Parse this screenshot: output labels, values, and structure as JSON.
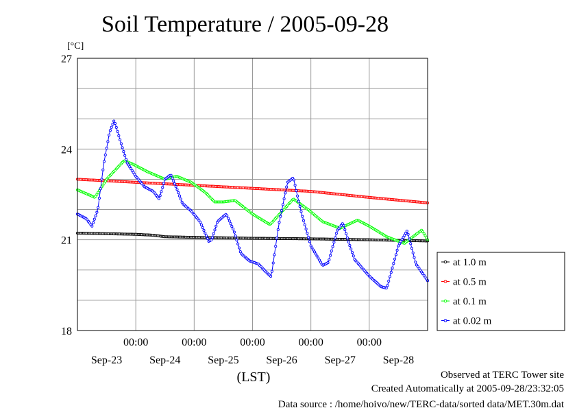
{
  "chart_data": {
    "type": "line",
    "title": "Soil Temperature / 2005-09-28",
    "ylabel": "[°C]",
    "xlabel": "(LST)",
    "ylim": [
      18,
      27
    ],
    "yticks": [
      "18",
      "21",
      "24",
      "27"
    ],
    "xlim_days": [
      22.0,
      28.0
    ],
    "x_time_labels": [
      "00:00",
      "00:00",
      "00:00",
      "00:00",
      "00:00"
    ],
    "x_date_labels": [
      "Sep-23",
      "Sep-24",
      "Sep-25",
      "Sep-26",
      "Sep-27",
      "Sep-28"
    ],
    "grid": true,
    "legend_position": "right",
    "series": [
      {
        "name": "at 1.0 m",
        "color": "#000000",
        "x": [
          22.0,
          22.5,
          23.0,
          23.3,
          23.5,
          24.0,
          25.0,
          26.0,
          27.0,
          28.0
        ],
        "y": [
          21.22,
          21.2,
          21.18,
          21.15,
          21.1,
          21.08,
          21.05,
          21.03,
          21.0,
          20.96
        ]
      },
      {
        "name": "at 0.5 m",
        "color": "#ff0000",
        "x": [
          22.0,
          23.0,
          24.0,
          25.0,
          26.0,
          27.0,
          28.0
        ],
        "y": [
          23.0,
          22.9,
          22.8,
          22.7,
          22.6,
          22.4,
          22.22
        ]
      },
      {
        "name": "at 0.1 m",
        "color": "#00ff00",
        "x": [
          22.0,
          22.3,
          22.5,
          22.8,
          22.95,
          23.2,
          23.5,
          23.7,
          23.95,
          24.2,
          24.35,
          24.5,
          24.7,
          25.0,
          25.3,
          25.7,
          25.95,
          26.2,
          26.5,
          26.8,
          27.0,
          27.3,
          27.6,
          27.9,
          28.0
        ],
        "y": [
          22.65,
          22.4,
          23.0,
          23.62,
          23.5,
          23.25,
          23.0,
          23.1,
          22.9,
          22.55,
          22.25,
          22.25,
          22.3,
          21.85,
          21.5,
          22.35,
          22.0,
          21.6,
          21.38,
          21.65,
          21.45,
          21.1,
          20.88,
          21.32,
          21.0
        ]
      },
      {
        "name": "at 0.02 m",
        "color": "#0000ff",
        "x": [
          22.0,
          22.15,
          22.25,
          22.35,
          22.45,
          22.55,
          22.63,
          22.73,
          22.85,
          23.0,
          23.15,
          23.3,
          23.4,
          23.5,
          23.6,
          23.7,
          23.8,
          23.95,
          24.1,
          24.25,
          24.3,
          24.4,
          24.55,
          24.68,
          24.8,
          24.95,
          25.1,
          25.25,
          25.32,
          25.45,
          25.6,
          25.7,
          25.8,
          25.85,
          26.0,
          26.2,
          26.3,
          26.45,
          26.55,
          26.65,
          26.75,
          27.0,
          27.2,
          27.3,
          27.5,
          27.65,
          27.8,
          28.0
        ],
        "y": [
          21.85,
          21.7,
          21.45,
          22.0,
          23.5,
          24.55,
          24.95,
          24.3,
          23.55,
          23.1,
          22.75,
          22.6,
          22.35,
          23.0,
          23.15,
          22.7,
          22.2,
          21.95,
          21.6,
          20.95,
          21.0,
          21.6,
          21.85,
          21.3,
          20.55,
          20.3,
          20.2,
          19.9,
          19.78,
          21.5,
          22.9,
          23.05,
          22.2,
          21.8,
          20.8,
          20.15,
          20.25,
          21.3,
          21.55,
          20.9,
          20.35,
          19.8,
          19.45,
          19.4,
          20.8,
          21.3,
          20.2,
          19.65
        ]
      }
    ]
  },
  "legend": {
    "items": [
      "at 1.0 m",
      "at 0.5 m",
      "at 0.1 m",
      "at 0.02 m"
    ]
  },
  "footer": {
    "observed": "Observed at TERC Tower site",
    "created": "Created Automatically at 2005-09-28/23:32:05",
    "source": "Data source : /home/hoivo/new/TERC-data/sorted  data/MET.30m.dat"
  }
}
